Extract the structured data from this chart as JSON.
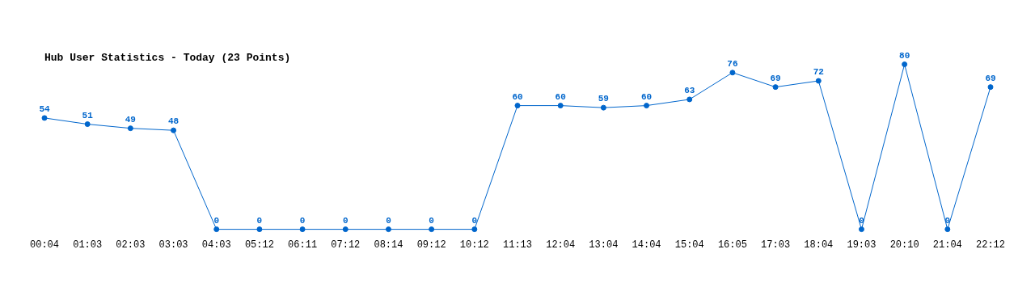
{
  "chart_data": {
    "type": "line",
    "title": "Hub User Statistics - Today (23 Points)",
    "categories": [
      "00:04",
      "01:03",
      "02:03",
      "03:03",
      "04:03",
      "05:12",
      "06:11",
      "07:12",
      "08:14",
      "09:12",
      "10:12",
      "11:13",
      "12:04",
      "13:04",
      "14:04",
      "15:04",
      "16:05",
      "17:03",
      "18:04",
      "19:03",
      "20:10",
      "21:04",
      "22:12"
    ],
    "series": [
      {
        "color": "#0066cc",
        "values": [
          54,
          51,
          49,
          48,
          0,
          0,
          0,
          0,
          0,
          0,
          0,
          60,
          60,
          59,
          60,
          63,
          76,
          69,
          72,
          0,
          80,
          0,
          69
        ]
      }
    ],
    "tick_labels": "x",
    "grid": false,
    "legend": false,
    "marker": "circle",
    "line_style": "solid",
    "data_labels": true
  }
}
